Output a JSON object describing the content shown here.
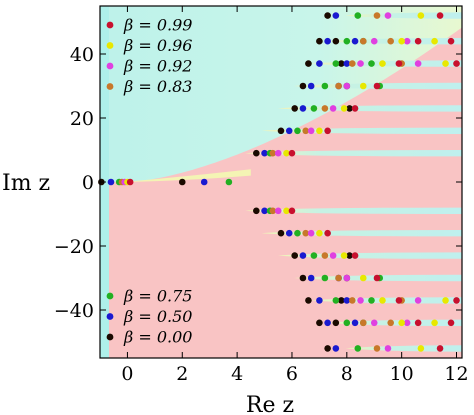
{
  "chart_data": {
    "type": "scatter",
    "title": "",
    "xlabel": "Re z",
    "ylabel": "Im z",
    "xlim": [
      -1,
      12.2
    ],
    "ylim": [
      -55,
      55
    ],
    "xticks": [
      0,
      2,
      4,
      6,
      8,
      10,
      12
    ],
    "xtick_labels": [
      "0",
      "2",
      "4",
      "6",
      "8",
      "10",
      "12"
    ],
    "yticks": [
      40,
      20,
      0,
      -20,
      -40
    ],
    "ytick_labels": [
      "40",
      "20",
      "0",
      "−20",
      "−40"
    ],
    "grid": false,
    "background": "phase-portrait (cyan upper-left, pink lower/right, striped bands)",
    "legend_top": [
      {
        "label": "β = 0.99",
        "color": "#c8102e"
      },
      {
        "label": "β = 0.96",
        "color": "#e8e800"
      },
      {
        "label": "β = 0.92",
        "color": "#e040e0"
      },
      {
        "label": "β = 0.83",
        "color": "#c8782a"
      }
    ],
    "legend_bottom": [
      {
        "label": "β = 0.75",
        "color": "#22b022"
      },
      {
        "label": "β = 0.50",
        "color": "#1a1ad0"
      },
      {
        "label": "β = 0.00",
        "color": "#1a0a00"
      }
    ],
    "bands": [
      -52,
      -44,
      -37,
      -30,
      -23,
      -16,
      -9,
      9,
      16,
      23,
      30,
      37,
      44,
      52
    ],
    "series": [
      {
        "color": "#1a0a00",
        "x": [
          -0.95,
          2.0,
          4.7,
          5.6,
          6.1,
          6.4,
          6.6,
          7.0,
          7.3,
          7.6,
          7.8,
          8.0,
          8.1,
          4.7,
          5.6,
          6.1,
          6.4,
          6.6,
          7.0,
          7.3,
          7.6,
          7.8,
          8.0,
          8.1
        ],
        "y": [
          0,
          0,
          9,
          16,
          23,
          30,
          37,
          44,
          52,
          44,
          37,
          30,
          23,
          -9,
          -16,
          -23,
          -30,
          -37,
          -44,
          -52,
          -44,
          -37,
          -30,
          -23
        ]
      },
      {
        "color": "#1a1ad0",
        "x": [
          -0.6,
          2.8,
          5.0,
          5.9,
          6.4,
          6.7,
          7.0,
          7.3,
          7.6,
          8.3,
          8.0,
          7.7,
          5.0,
          5.9,
          6.4,
          6.7,
          7.0,
          7.3,
          7.6,
          8.3,
          8.0,
          7.7
        ],
        "y": [
          0,
          0,
          9,
          16,
          23,
          30,
          37,
          44,
          52,
          44,
          37,
          30,
          -9,
          -16,
          -23,
          -30,
          -37,
          -44,
          -52,
          -44,
          -37,
          -30
        ]
      },
      {
        "color": "#22b022",
        "x": [
          -0.3,
          3.7,
          5.2,
          6.2,
          6.8,
          7.2,
          7.6,
          8.0,
          8.4,
          8.6,
          8.9,
          9.2,
          5.2,
          6.2,
          6.8,
          7.2,
          7.6,
          8.0,
          8.4,
          8.6,
          8.9,
          9.2
        ],
        "y": [
          0,
          0,
          9,
          16,
          23,
          30,
          37,
          44,
          52,
          44,
          37,
          30,
          -9,
          -16,
          -23,
          -30,
          -37,
          -44,
          -52,
          -44,
          -37,
          -30
        ]
      },
      {
        "color": "#c8782a",
        "x": [
          -0.2,
          5.3,
          6.5,
          7.2,
          7.7,
          8.2,
          8.6,
          9.1,
          9.6,
          10.0,
          5.3,
          6.5,
          7.2,
          7.7,
          8.2,
          8.6,
          9.1,
          9.6,
          10.0
        ],
        "y": [
          0,
          9,
          16,
          23,
          30,
          37,
          44,
          52,
          44,
          37,
          -9,
          -16,
          -23,
          -30,
          -37,
          -44,
          -52,
          -44,
          -37
        ]
      },
      {
        "color": "#e040e0",
        "x": [
          -0.1,
          5.5,
          6.7,
          7.5,
          8.0,
          8.5,
          9.0,
          9.5,
          10.2,
          10.6,
          5.5,
          6.7,
          7.5,
          8.0,
          8.5,
          9.0,
          9.5,
          10.2,
          10.6
        ],
        "y": [
          0,
          9,
          16,
          23,
          30,
          37,
          44,
          52,
          44,
          37,
          -9,
          -16,
          -23,
          -30,
          -37,
          -44,
          -52,
          -44,
          -37
        ]
      },
      {
        "color": "#e8e800",
        "x": [
          0.0,
          5.8,
          7.0,
          7.9,
          8.6,
          9.3,
          10.0,
          10.7,
          11.2,
          11.6,
          5.8,
          7.0,
          7.9,
          8.6,
          9.3,
          10.0,
          10.7,
          11.2,
          11.6
        ],
        "y": [
          0,
          9,
          16,
          23,
          30,
          37,
          44,
          52,
          44,
          37,
          -9,
          -16,
          -23,
          -30,
          -37,
          -44,
          -52,
          -44,
          -37
        ]
      },
      {
        "color": "#c8102e",
        "x": [
          0.1,
          6.0,
          7.3,
          8.3,
          9.1,
          9.9,
          10.6,
          11.4,
          11.8,
          12.0,
          6.0,
          7.3,
          8.3,
          9.1,
          9.9,
          10.6,
          11.4,
          11.8,
          12.0
        ],
        "y": [
          0,
          9,
          16,
          23,
          30,
          37,
          44,
          52,
          44,
          37,
          -9,
          -16,
          -23,
          -30,
          -37,
          -44,
          -52,
          -44,
          -37
        ]
      }
    ]
  }
}
